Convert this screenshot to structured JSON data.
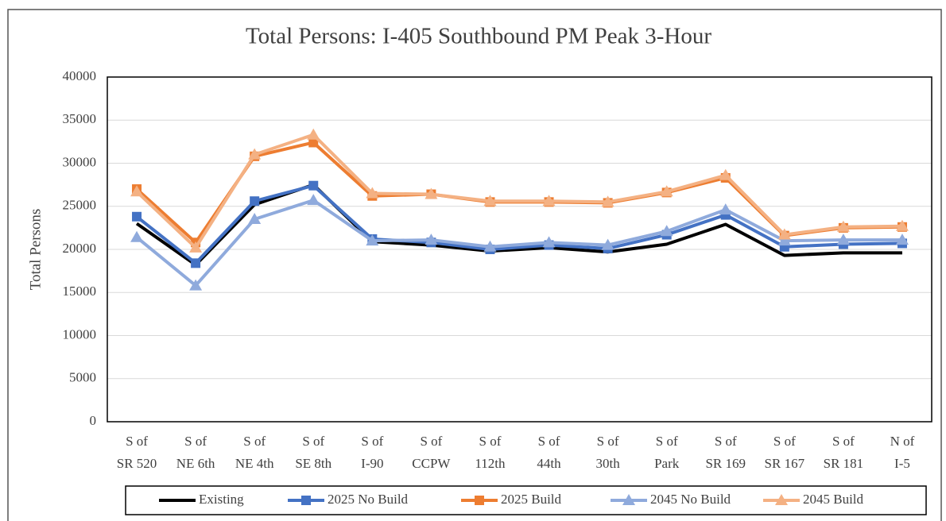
{
  "chart_data": {
    "type": "line",
    "title": "Total Persons: I-405 Southbound PM Peak 3-Hour",
    "y_label": "Total Persons",
    "categories": [
      [
        "S of",
        "SR 520"
      ],
      [
        "S of",
        "NE 6th"
      ],
      [
        "S of",
        "NE 4th"
      ],
      [
        "S of",
        "SE 8th"
      ],
      [
        "S of",
        "I-90"
      ],
      [
        "S of",
        "CCPW"
      ],
      [
        "S of",
        "112th"
      ],
      [
        "S of",
        "44th"
      ],
      [
        "S of",
        "30th"
      ],
      [
        "S of",
        "Park"
      ],
      [
        "S of",
        "SR 169"
      ],
      [
        "S of",
        "SR 167"
      ],
      [
        "S of",
        "SR 181"
      ],
      [
        "N of",
        "I-5"
      ]
    ],
    "series": [
      {
        "name": "Existing",
        "color": "#000000",
        "marker": "none",
        "values": [
          23000,
          18200,
          25200,
          27500,
          20900,
          20500,
          19800,
          20200,
          19700,
          20600,
          22900,
          19300,
          19600,
          19600
        ]
      },
      {
        "name": "2025 No Build",
        "color": "#4472c4",
        "marker": "square",
        "values": [
          23800,
          18400,
          25600,
          27400,
          21200,
          20800,
          20000,
          20500,
          20100,
          21700,
          24000,
          20300,
          20600,
          20700
        ]
      },
      {
        "name": "2025 Build",
        "color": "#ed7d31",
        "marker": "square",
        "values": [
          27000,
          20800,
          30800,
          32400,
          26200,
          26400,
          25500,
          25500,
          25400,
          26600,
          28300,
          21600,
          22500,
          22600
        ]
      },
      {
        "name": "2045 No Build",
        "color": "#8faadc",
        "marker": "triangle",
        "values": [
          21400,
          15800,
          23500,
          25700,
          21000,
          21100,
          20300,
          20800,
          20500,
          22100,
          24600,
          21000,
          21100,
          21100
        ]
      },
      {
        "name": "2045 Build",
        "color": "#f4b183",
        "marker": "triangle",
        "values": [
          26700,
          20200,
          31000,
          33300,
          26500,
          26400,
          25600,
          25600,
          25500,
          26700,
          28600,
          21700,
          22600,
          22700
        ]
      }
    ],
    "ylim": [
      0,
      40000
    ],
    "yticks": [
      0,
      5000,
      10000,
      15000,
      20000,
      25000,
      30000,
      35000,
      40000
    ],
    "grid": true,
    "legend": "bottom"
  }
}
